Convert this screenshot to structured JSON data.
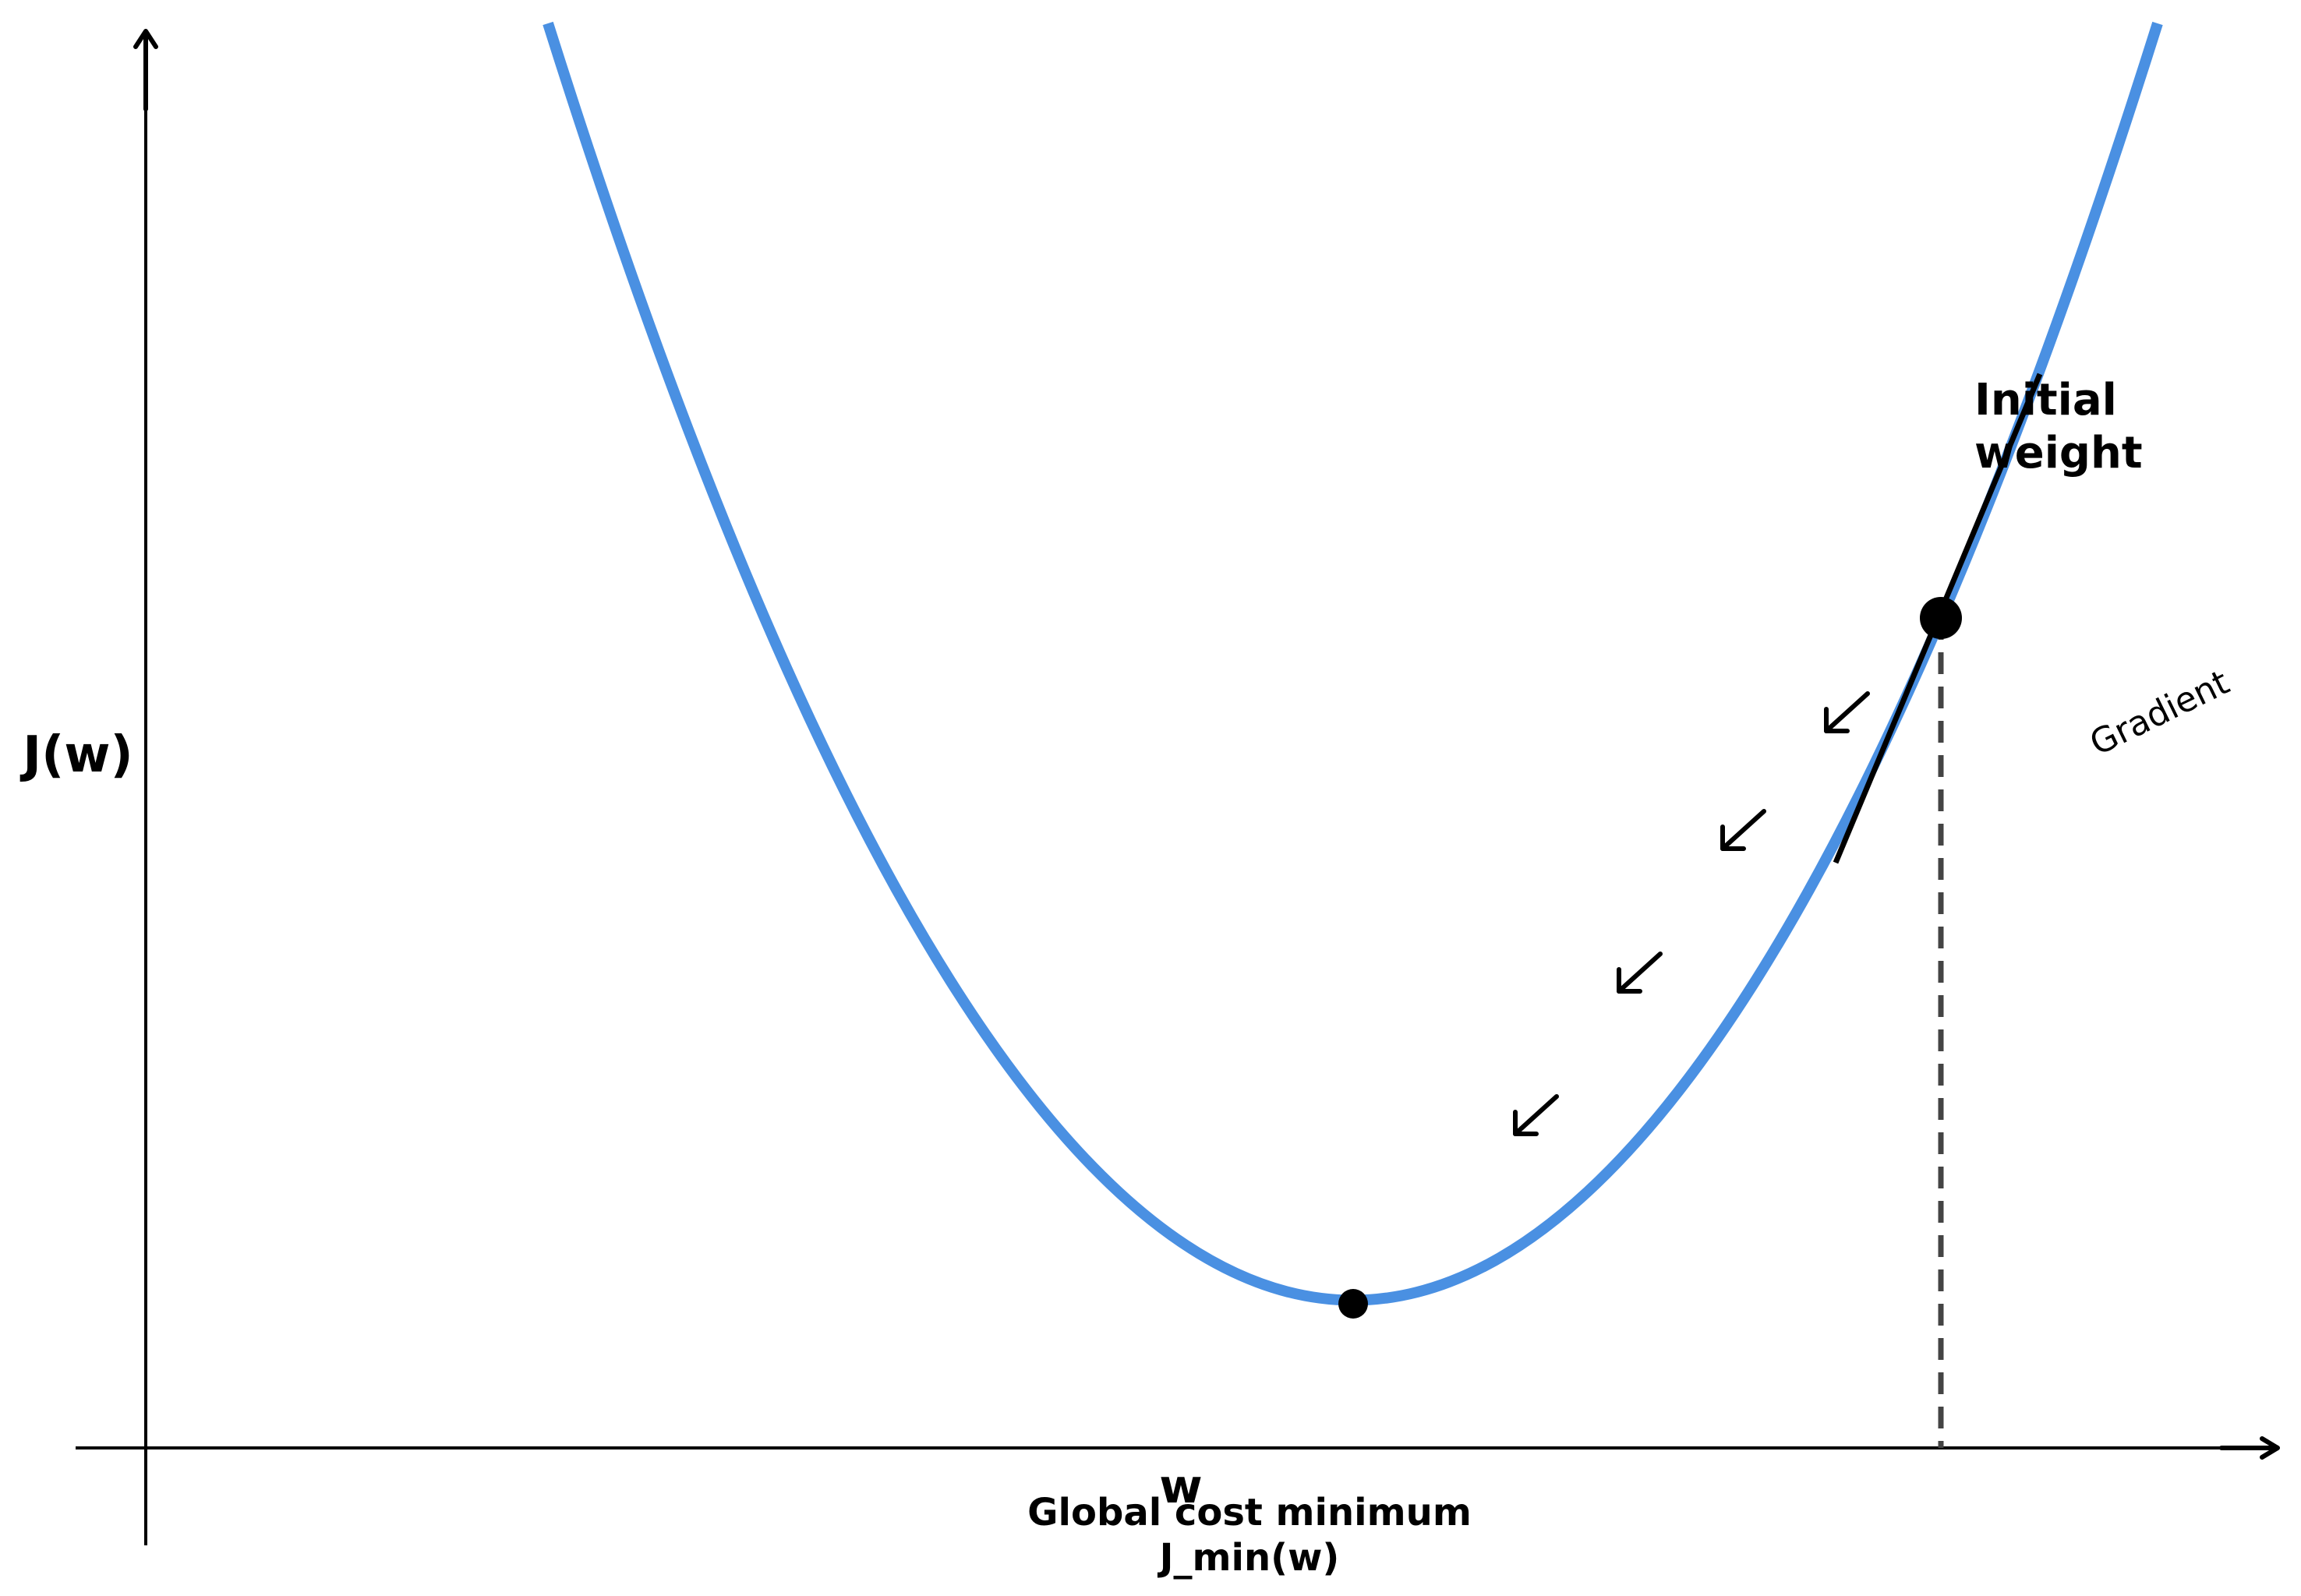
{
  "labels": {
    "y_axis": "J(w)",
    "x_axis": "w",
    "initial_weight_line1": "Initial",
    "initial_weight_line2": "weight",
    "gradient": "Gradient",
    "global_min_line1": "Global cost minimum",
    "global_min_line2": "J_min(w)"
  },
  "colors": {
    "curve": "#4a90e2",
    "axis": "#000000",
    "dashed_line": "#444444",
    "points": "#000000"
  },
  "icons": {
    "y_axis_arrow": "arrow-up-icon",
    "x_axis_arrow": "arrow-right-icon",
    "descent_arrows": "arrow-down-left-icon"
  }
}
